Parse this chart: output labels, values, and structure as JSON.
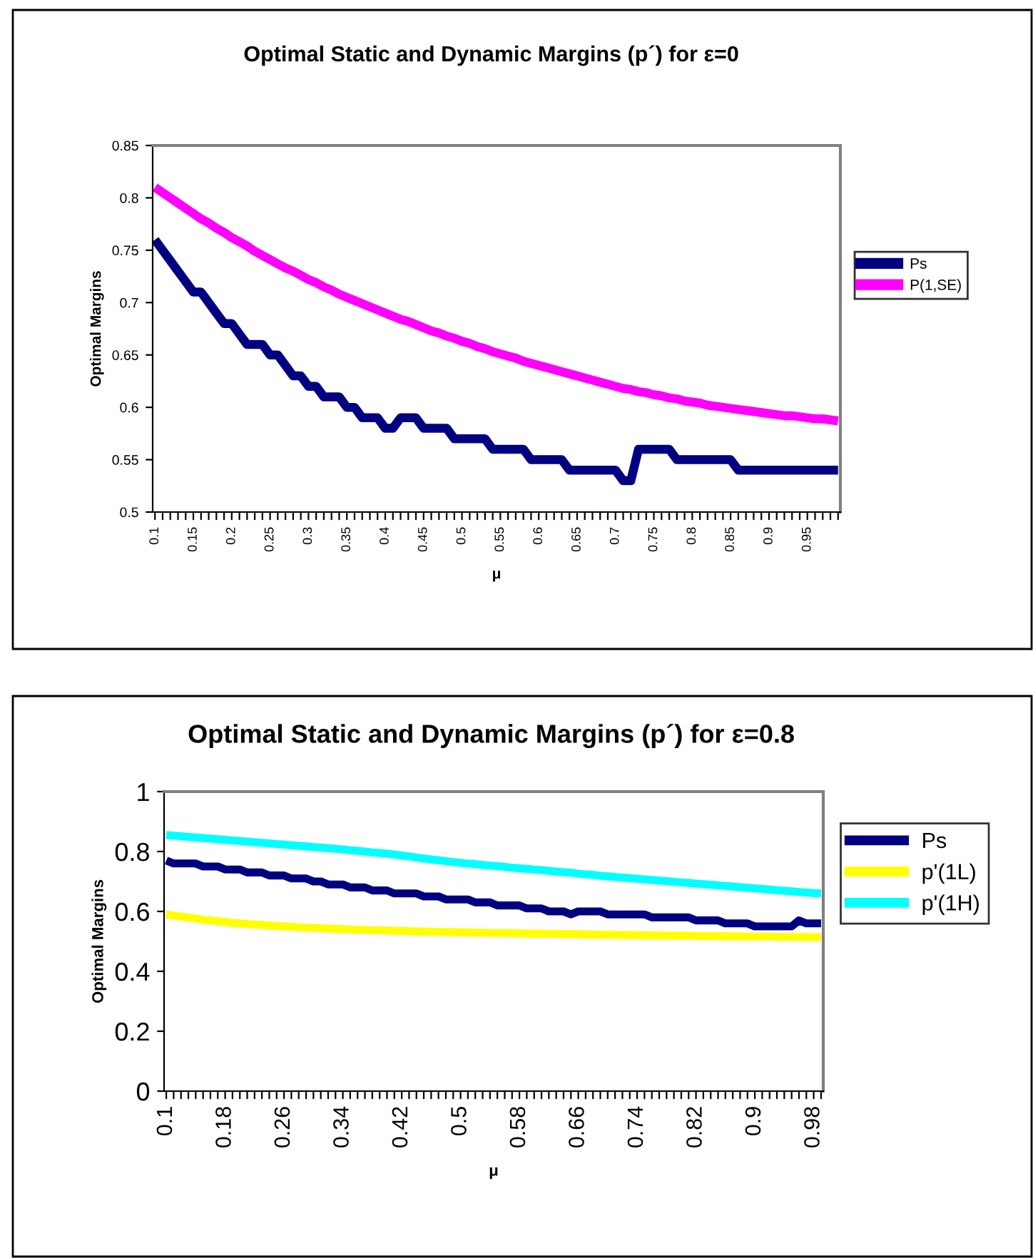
{
  "chart_data": [
    {
      "type": "line",
      "title": "Optimal Static and Dynamic Margins (p´) for ε=0",
      "xlabel": "μ",
      "ylabel": "Optimal Margins",
      "legend": "right",
      "categories": [
        "0.1",
        null,
        null,
        null,
        null,
        "0.15",
        null,
        null,
        null,
        null,
        "0.2",
        null,
        null,
        null,
        null,
        "0.25",
        null,
        null,
        null,
        null,
        "0.3",
        null,
        null,
        null,
        null,
        "0.35",
        null,
        null,
        null,
        null,
        "0.4",
        null,
        null,
        null,
        null,
        "0.45",
        null,
        null,
        null,
        null,
        "0.5",
        null,
        null,
        null,
        null,
        "0.55",
        null,
        null,
        null,
        null,
        "0.6",
        null,
        null,
        null,
        null,
        "0.65",
        null,
        null,
        null,
        null,
        "0.7",
        null,
        null,
        null,
        null,
        "0.75",
        null,
        null,
        null,
        null,
        "0.8",
        null,
        null,
        null,
        null,
        "0.85",
        null,
        null,
        null,
        null,
        "0.9",
        null,
        null,
        null,
        null,
        "0.95",
        null,
        null,
        null,
        null
      ],
      "ylim": [
        0.5,
        0.85
      ],
      "yticks": [
        0.5,
        0.55,
        0.6,
        0.65,
        0.7,
        0.75,
        0.8,
        0.85
      ],
      "series": [
        {
          "name": "Ps",
          "color": "#000080",
          "values": [
            0.76,
            0.75,
            0.74,
            0.73,
            0.72,
            0.71,
            0.71,
            0.7,
            0.69,
            0.68,
            0.68,
            0.67,
            0.66,
            0.66,
            0.66,
            0.65,
            0.65,
            0.64,
            0.63,
            0.63,
            0.62,
            0.62,
            0.61,
            0.61,
            0.61,
            0.6,
            0.6,
            0.59,
            0.59,
            0.59,
            0.58,
            0.58,
            0.59,
            0.59,
            0.59,
            0.58,
            0.58,
            0.58,
            0.58,
            0.57,
            0.57,
            0.57,
            0.57,
            0.57,
            0.56,
            0.56,
            0.56,
            0.56,
            0.56,
            0.55,
            0.55,
            0.55,
            0.55,
            0.55,
            0.54,
            0.54,
            0.54,
            0.54,
            0.54,
            0.54,
            0.54,
            0.53,
            0.53,
            0.56,
            0.56,
            0.56,
            0.56,
            0.56,
            0.55,
            0.55,
            0.55,
            0.55,
            0.55,
            0.55,
            0.55,
            0.55,
            0.54,
            0.54,
            0.54,
            0.54,
            0.54,
            0.54,
            0.54,
            0.54,
            0.54,
            0.54,
            0.54,
            0.54,
            0.54,
            0.54
          ]
        },
        {
          "name": "P(1,SE)",
          "color": "#ff00ff",
          "values": [
            0.81,
            0.805,
            0.8,
            0.795,
            0.79,
            0.785,
            0.78,
            0.776,
            0.771,
            0.767,
            0.762,
            0.758,
            0.754,
            0.749,
            0.745,
            0.741,
            0.737,
            0.733,
            0.73,
            0.726,
            0.722,
            0.719,
            0.715,
            0.712,
            0.708,
            0.705,
            0.702,
            0.699,
            0.696,
            0.693,
            0.69,
            0.687,
            0.684,
            0.682,
            0.679,
            0.676,
            0.673,
            0.671,
            0.668,
            0.666,
            0.663,
            0.661,
            0.658,
            0.656,
            0.653,
            0.651,
            0.649,
            0.647,
            0.644,
            0.642,
            0.64,
            0.638,
            0.636,
            0.634,
            0.632,
            0.63,
            0.628,
            0.626,
            0.624,
            0.622,
            0.62,
            0.618,
            0.617,
            0.615,
            0.614,
            0.612,
            0.611,
            0.609,
            0.608,
            0.606,
            0.605,
            0.604,
            0.602,
            0.601,
            0.6,
            0.599,
            0.598,
            0.597,
            0.596,
            0.595,
            0.594,
            0.593,
            0.592,
            0.592,
            0.591,
            0.59,
            0.589,
            0.589,
            0.588,
            0.587
          ]
        }
      ]
    },
    {
      "type": "line",
      "title": "Optimal Static and Dynamic Margins (p´) for ε=0.8",
      "xlabel": "μ",
      "ylabel": "Optimal Margins",
      "legend": "right",
      "categories": [
        "0.1",
        null,
        null,
        null,
        null,
        null,
        null,
        null,
        "0.18",
        null,
        null,
        null,
        null,
        null,
        null,
        null,
        "0.26",
        null,
        null,
        null,
        null,
        null,
        null,
        null,
        "0.34",
        null,
        null,
        null,
        null,
        null,
        null,
        null,
        "0.42",
        null,
        null,
        null,
        null,
        null,
        null,
        null,
        "0.5",
        null,
        null,
        null,
        null,
        null,
        null,
        null,
        "0.58",
        null,
        null,
        null,
        null,
        null,
        null,
        null,
        "0.66",
        null,
        null,
        null,
        null,
        null,
        null,
        null,
        "0.74",
        null,
        null,
        null,
        null,
        null,
        null,
        null,
        "0.82",
        null,
        null,
        null,
        null,
        null,
        null,
        null,
        "0.9",
        null,
        null,
        null,
        null,
        null,
        null,
        null,
        "0.98",
        null
      ],
      "ylim": [
        0,
        1
      ],
      "yticks": [
        0,
        0.2,
        0.4,
        0.6,
        0.8,
        1
      ],
      "series": [
        {
          "name": "Ps",
          "color": "#000080",
          "values": [
            0.77,
            0.76,
            0.76,
            0.76,
            0.76,
            0.75,
            0.75,
            0.75,
            0.74,
            0.74,
            0.74,
            0.73,
            0.73,
            0.73,
            0.72,
            0.72,
            0.72,
            0.71,
            0.71,
            0.71,
            0.7,
            0.7,
            0.69,
            0.69,
            0.69,
            0.68,
            0.68,
            0.68,
            0.67,
            0.67,
            0.67,
            0.66,
            0.66,
            0.66,
            0.66,
            0.65,
            0.65,
            0.65,
            0.64,
            0.64,
            0.64,
            0.64,
            0.63,
            0.63,
            0.63,
            0.62,
            0.62,
            0.62,
            0.62,
            0.61,
            0.61,
            0.61,
            0.6,
            0.6,
            0.6,
            0.59,
            0.6,
            0.6,
            0.6,
            0.6,
            0.59,
            0.59,
            0.59,
            0.59,
            0.59,
            0.59,
            0.58,
            0.58,
            0.58,
            0.58,
            0.58,
            0.58,
            0.57,
            0.57,
            0.57,
            0.57,
            0.56,
            0.56,
            0.56,
            0.56,
            0.55,
            0.55,
            0.55,
            0.55,
            0.55,
            0.55,
            0.57,
            0.56,
            0.56,
            0.56
          ]
        },
        {
          "name": "p'(1L)",
          "color": "#ffff00",
          "values": [
            0.59,
            0.586,
            0.583,
            0.579,
            0.576,
            0.572,
            0.57,
            0.567,
            0.565,
            0.562,
            0.56,
            0.558,
            0.556,
            0.555,
            0.553,
            0.551,
            0.55,
            0.549,
            0.547,
            0.546,
            0.545,
            0.544,
            0.543,
            0.542,
            0.541,
            0.54,
            0.539,
            0.538,
            0.537,
            0.537,
            0.536,
            0.535,
            0.535,
            0.534,
            0.533,
            0.533,
            0.532,
            0.532,
            0.531,
            0.531,
            0.53,
            0.53,
            0.529,
            0.529,
            0.528,
            0.528,
            0.528,
            0.527,
            0.527,
            0.526,
            0.526,
            0.526,
            0.525,
            0.525,
            0.524,
            0.524,
            0.524,
            0.523,
            0.523,
            0.522,
            0.522,
            0.522,
            0.521,
            0.521,
            0.521,
            0.52,
            0.52,
            0.52,
            0.519,
            0.519,
            0.519,
            0.519,
            0.518,
            0.518,
            0.518,
            0.517,
            0.517,
            0.517,
            0.516,
            0.516,
            0.516,
            0.516,
            0.516,
            0.515,
            0.515,
            0.515,
            0.515,
            0.514,
            0.514,
            0.514
          ]
        },
        {
          "name": "p'(1H)",
          "color": "#00ffff",
          "values": [
            0.855,
            0.853,
            0.851,
            0.849,
            0.847,
            0.845,
            0.843,
            0.841,
            0.839,
            0.837,
            0.835,
            0.833,
            0.831,
            0.829,
            0.827,
            0.825,
            0.823,
            0.821,
            0.819,
            0.817,
            0.815,
            0.813,
            0.811,
            0.809,
            0.807,
            0.804,
            0.802,
            0.8,
            0.797,
            0.795,
            0.793,
            0.79,
            0.787,
            0.784,
            0.78,
            0.777,
            0.774,
            0.771,
            0.768,
            0.765,
            0.762,
            0.76,
            0.758,
            0.755,
            0.753,
            0.751,
            0.749,
            0.746,
            0.744,
            0.742,
            0.74,
            0.738,
            0.735,
            0.733,
            0.731,
            0.729,
            0.726,
            0.724,
            0.722,
            0.719,
            0.717,
            0.715,
            0.713,
            0.711,
            0.709,
            0.707,
            0.705,
            0.703,
            0.701,
            0.699,
            0.697,
            0.695,
            0.693,
            0.691,
            0.689,
            0.687,
            0.685,
            0.683,
            0.681,
            0.679,
            0.677,
            0.675,
            0.673,
            0.671,
            0.669,
            0.667,
            0.665,
            0.663,
            0.661,
            0.66
          ]
        }
      ]
    }
  ]
}
